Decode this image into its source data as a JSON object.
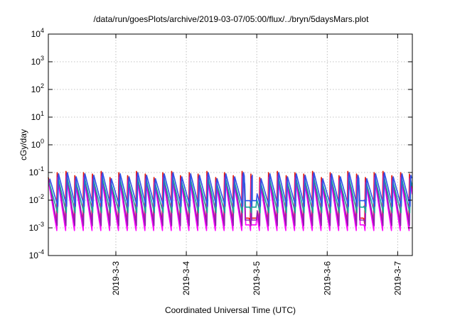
{
  "chart_data": {
    "type": "line",
    "title": "/data/run/goesPlots/archive/2019-03-07/05:00/flux/../bryn/5daysMars.plot",
    "xlabel": "Coordinated Universal Time (UTC)",
    "ylabel": "cGy/day",
    "yscale": "log",
    "ylim": [
      0.0001,
      10000
    ],
    "xlim": [
      "2019-03-02T01:00",
      "2019-03-07T05:00"
    ],
    "grid": true,
    "x_ticks": [
      {
        "value": "2019-03-03T00:00",
        "label": "2019-3-3"
      },
      {
        "value": "2019-03-04T00:00",
        "label": "2019-3-4"
      },
      {
        "value": "2019-03-05T00:00",
        "label": "2019-3-5"
      },
      {
        "value": "2019-03-06T00:00",
        "label": "2019-3-6"
      },
      {
        "value": "2019-03-07T00:00",
        "label": "2019-3-7"
      }
    ],
    "y_ticks": [
      {
        "value": 0.0001,
        "base": "10",
        "exp": "-4"
      },
      {
        "value": 0.001,
        "base": "10",
        "exp": "-3"
      },
      {
        "value": 0.01,
        "base": "10",
        "exp": "-2"
      },
      {
        "value": 0.1,
        "base": "10",
        "exp": "-1"
      },
      {
        "value": 1,
        "base": "10",
        "exp": "0"
      },
      {
        "value": 10,
        "base": "10",
        "exp": "1"
      },
      {
        "value": 100,
        "base": "10",
        "exp": "2"
      },
      {
        "value": 1000,
        "base": "10",
        "exp": "3"
      },
      {
        "value": 10000,
        "base": "10",
        "exp": "4"
      }
    ],
    "pattern": {
      "description_free_values": true,
      "cycle_hours": 3,
      "peaks_cGy_per_day": [
        0.06,
        0.09,
        0.1,
        0.07,
        0.09,
        0.08,
        0.1,
        0.06,
        0.09,
        0.07,
        0.1,
        0.08
      ],
      "start": "2019-03-02T01:00",
      "end": "2019-03-07T05:00",
      "low_stretches": [
        {
          "from": "2019-03-04T20:00",
          "to": "2019-03-05T00:00"
        },
        {
          "from": "2019-03-06T11:00",
          "to": "2019-03-06T12:30"
        }
      ]
    },
    "series": [
      {
        "color": "#e8180c",
        "peak_factor": 1.1,
        "trough": 0.0014
      },
      {
        "color": "#ff00ff",
        "peak_factor": 0.75,
        "trough": 0.0008
      },
      {
        "color": "#8f1fb0",
        "peak_factor": 0.9,
        "trough": 0.0012
      },
      {
        "color": "#1aa69a",
        "peak_factor": 0.7,
        "trough": 0.0035
      },
      {
        "color": "#2f55e8",
        "peak_factor": 1.0,
        "trough": 0.006
      }
    ]
  }
}
